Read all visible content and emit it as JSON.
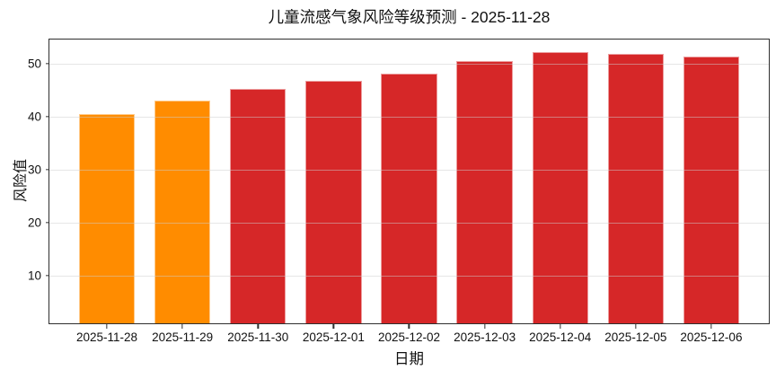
{
  "chart_data": {
    "type": "bar",
    "title": "儿童流感气象风险等级预测 - 2025-11-28",
    "xlabel": "日期",
    "ylabel": "风险值",
    "categories": [
      "2025-11-28",
      "2025-11-29",
      "2025-11-30",
      "2025-12-01",
      "2025-12-02",
      "2025-12-03",
      "2025-12-04",
      "2025-12-05",
      "2025-12-06"
    ],
    "values": [
      40.5,
      43.0,
      45.2,
      46.7,
      48.0,
      50.5,
      52.1,
      51.8,
      51.3
    ],
    "bar_colors": [
      "#FF8C00",
      "#FF8C00",
      "#D62728",
      "#D62728",
      "#D62728",
      "#D62728",
      "#D62728",
      "#D62728",
      "#D62728"
    ],
    "accent_orange": "#FF8C00",
    "accent_red": "#D62728",
    "yticks": [
      10,
      20,
      30,
      40,
      50
    ],
    "ylim": [
      1.0,
      54.5
    ],
    "grid": true,
    "grid_axis": "y",
    "legend_position": "none"
  }
}
